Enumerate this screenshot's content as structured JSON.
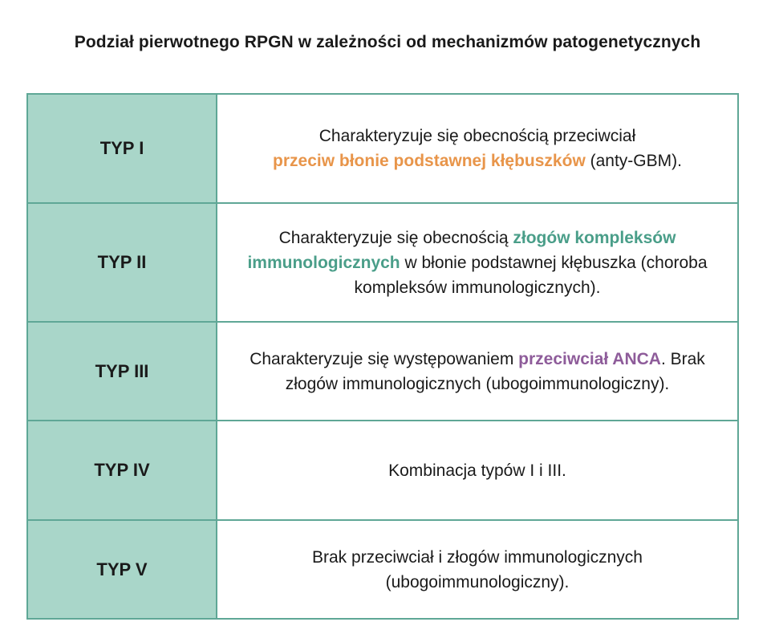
{
  "title": "Podział pierwotnego RPGN w zależności od mechanizmów patogenetycznych",
  "colors": {
    "label_bg": "#a9d6c9",
    "border": "#5fa796",
    "highlight_orange": "#e8954a",
    "highlight_green": "#4a9e89",
    "highlight_purple": "#8e5c9a"
  },
  "rows": [
    {
      "label": "TYP I",
      "text_before": "Charakteryzuje się obecnością przeciwciał",
      "highlight": "przeciw błonie podstawnej kłębuszków",
      "text_after": " (anty-GBM)."
    },
    {
      "label": "TYP II",
      "text_before": "Charakteryzuje się obecnością ",
      "highlight": "złogów kompleksów immunologicznych",
      "text_after": " w błonie podstawnej kłębuszka (choroba kompleksów immunologicznych)."
    },
    {
      "label": "TYP III",
      "text_before": "Charakteryzuje się występowaniem ",
      "highlight": "przeciwciał ANCA",
      "text_after": ". Brak złogów immunologicznych (ubogoimmunologiczny)."
    },
    {
      "label": "TYP IV",
      "text": "Kombinacja typów I i III."
    },
    {
      "label": "TYP V",
      "text_line1": "Brak przeciwciał i złogów immunologicznych",
      "text_line2": "(ubogoimmunologiczny)."
    }
  ]
}
